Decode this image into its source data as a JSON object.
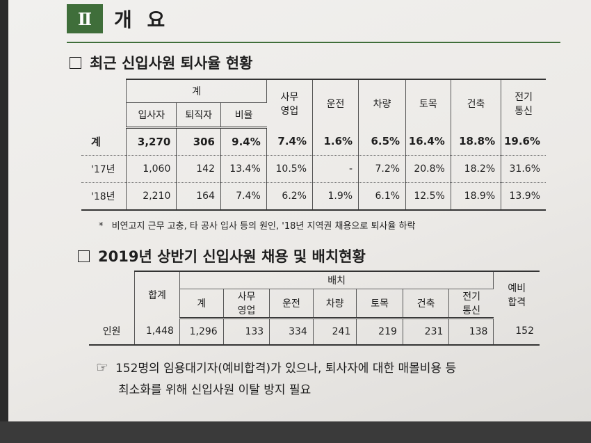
{
  "section": {
    "numeral": "Ⅱ",
    "title": "개 요"
  },
  "heading1": "최근 신입사원 퇴사율 현황",
  "table1": {
    "group_header": "계",
    "sub_headers": [
      "입사자",
      "퇴직자",
      "비율"
    ],
    "col_headers": [
      [
        "사무",
        "영업"
      ],
      [
        "운전"
      ],
      [
        "차량"
      ],
      [
        "토목"
      ],
      [
        "건축"
      ],
      [
        "전기",
        "통신"
      ]
    ],
    "rows": [
      {
        "label": "계",
        "values": [
          "3,270",
          "306",
          "9.4%",
          "7.4%",
          "1.6%",
          "6.5%",
          "16.4%",
          "18.8%",
          "19.6%"
        ]
      },
      {
        "label": "'17년",
        "values": [
          "1,060",
          "142",
          "13.4%",
          "10.5%",
          "-",
          "7.2%",
          "20.8%",
          "18.2%",
          "31.6%"
        ]
      },
      {
        "label": "'18년",
        "values": [
          "2,210",
          "164",
          "7.4%",
          "6.2%",
          "1.9%",
          "6.1%",
          "12.5%",
          "18.9%",
          "13.9%"
        ]
      }
    ]
  },
  "note": {
    "bullet": "*",
    "text": "비연고지 근무 고충, 타 공사 입사 등의 원인, '18년 지역권 채용으로 퇴사율 하락"
  },
  "heading2": "2019년 상반기 신입사원 채용 및 배치현황",
  "table2": {
    "total_header": "합계",
    "group_header": "배치",
    "sub_headers": [
      [
        "계"
      ],
      [
        "사무",
        "영업"
      ],
      [
        "운전"
      ],
      [
        "차량"
      ],
      [
        "토목"
      ],
      [
        "건축"
      ],
      [
        "전기",
        "통신"
      ]
    ],
    "reserve_header": [
      "예비",
      "합격"
    ],
    "row": {
      "label": "인원",
      "values": [
        "1,448",
        "1,296",
        "133",
        "334",
        "241",
        "219",
        "231",
        "138",
        "152"
      ]
    }
  },
  "conclusion": {
    "icon": "pointing-hand-icon",
    "line1": "152명의 임용대기자(예비합격)가 있으나, 퇴사자에 대한 매몰비용 등",
    "line2": "최소화를 위해 신입사원 이탈 방지 필요"
  },
  "colors": {
    "accent": "#3f6e3a"
  }
}
